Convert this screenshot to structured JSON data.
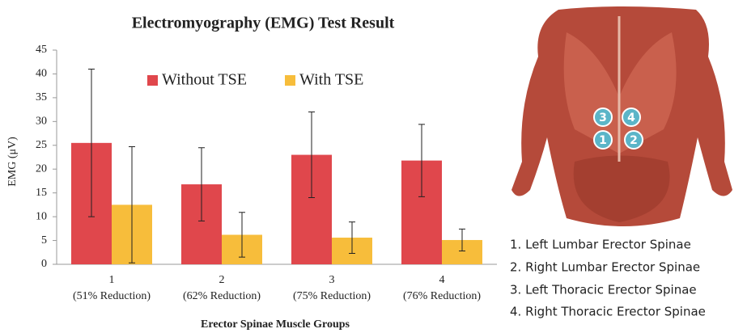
{
  "chart_data": {
    "type": "bar",
    "title": "Electromyography (EMG) Test Result",
    "x_label": "Erector Spinae Muscle Groups",
    "y_label": "EMG (μV)",
    "categories": [
      "1",
      "2",
      "3",
      "4"
    ],
    "category_notes": [
      "(51% Reduction)",
      "(62% Reduction)",
      "(75% Reduction)",
      "(76% Reduction)"
    ],
    "series": [
      {
        "name": "Without TSE",
        "color": "#e0474c",
        "values": [
          25.5,
          16.8,
          23,
          21.8
        ],
        "errors": [
          15.5,
          7.7,
          9,
          7.6
        ]
      },
      {
        "name": "With TSE",
        "color": "#f7bd3b",
        "values": [
          12.5,
          6.2,
          5.6,
          5.1
        ],
        "errors": [
          12.2,
          4.7,
          3.3,
          2.3
        ]
      }
    ],
    "ylim": [
      0,
      45
    ],
    "yticks": [
      0,
      5,
      10,
      15,
      20,
      25,
      30,
      35,
      40,
      45
    ],
    "grid": false,
    "legend": "top"
  },
  "figure": {
    "markers": [
      "3",
      "4",
      "1",
      "2"
    ],
    "legend": [
      "1. Left Lumbar Erector Spinae",
      "2. Right Lumbar Erector Spinae",
      "3. Left Thoracic Erector Spinae",
      "4. Right Thoracic Erector Spinae"
    ]
  }
}
